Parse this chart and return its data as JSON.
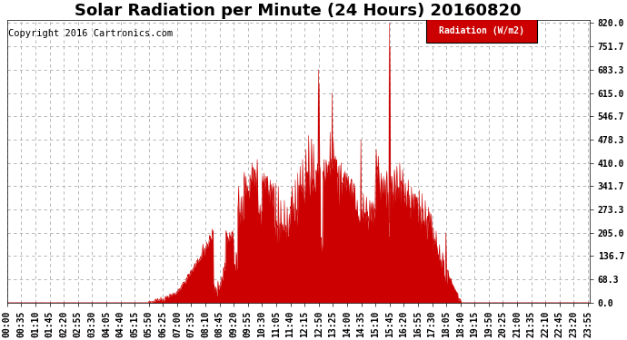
{
  "title": "Solar Radiation per Minute (24 Hours) 20160820",
  "copyright_text": "Copyright 2016 Cartronics.com",
  "ylabel": "Radiation (W/m2)",
  "yticks": [
    0.0,
    68.3,
    136.7,
    205.0,
    273.3,
    341.7,
    410.0,
    478.3,
    546.7,
    615.0,
    683.3,
    751.7,
    820.0
  ],
  "ymax": 820.0,
  "ymin": 0.0,
  "fill_color": "#cc0000",
  "line_color": "#cc0000",
  "dashed_line_color": "#cc0000",
  "background_color": "#ffffff",
  "grid_color": "#aaaaaa",
  "legend_bg": "#cc0000",
  "legend_text": "Radiation (W/m2)",
  "title_fontsize": 13,
  "axis_fontsize": 7,
  "copyright_fontsize": 7.5
}
